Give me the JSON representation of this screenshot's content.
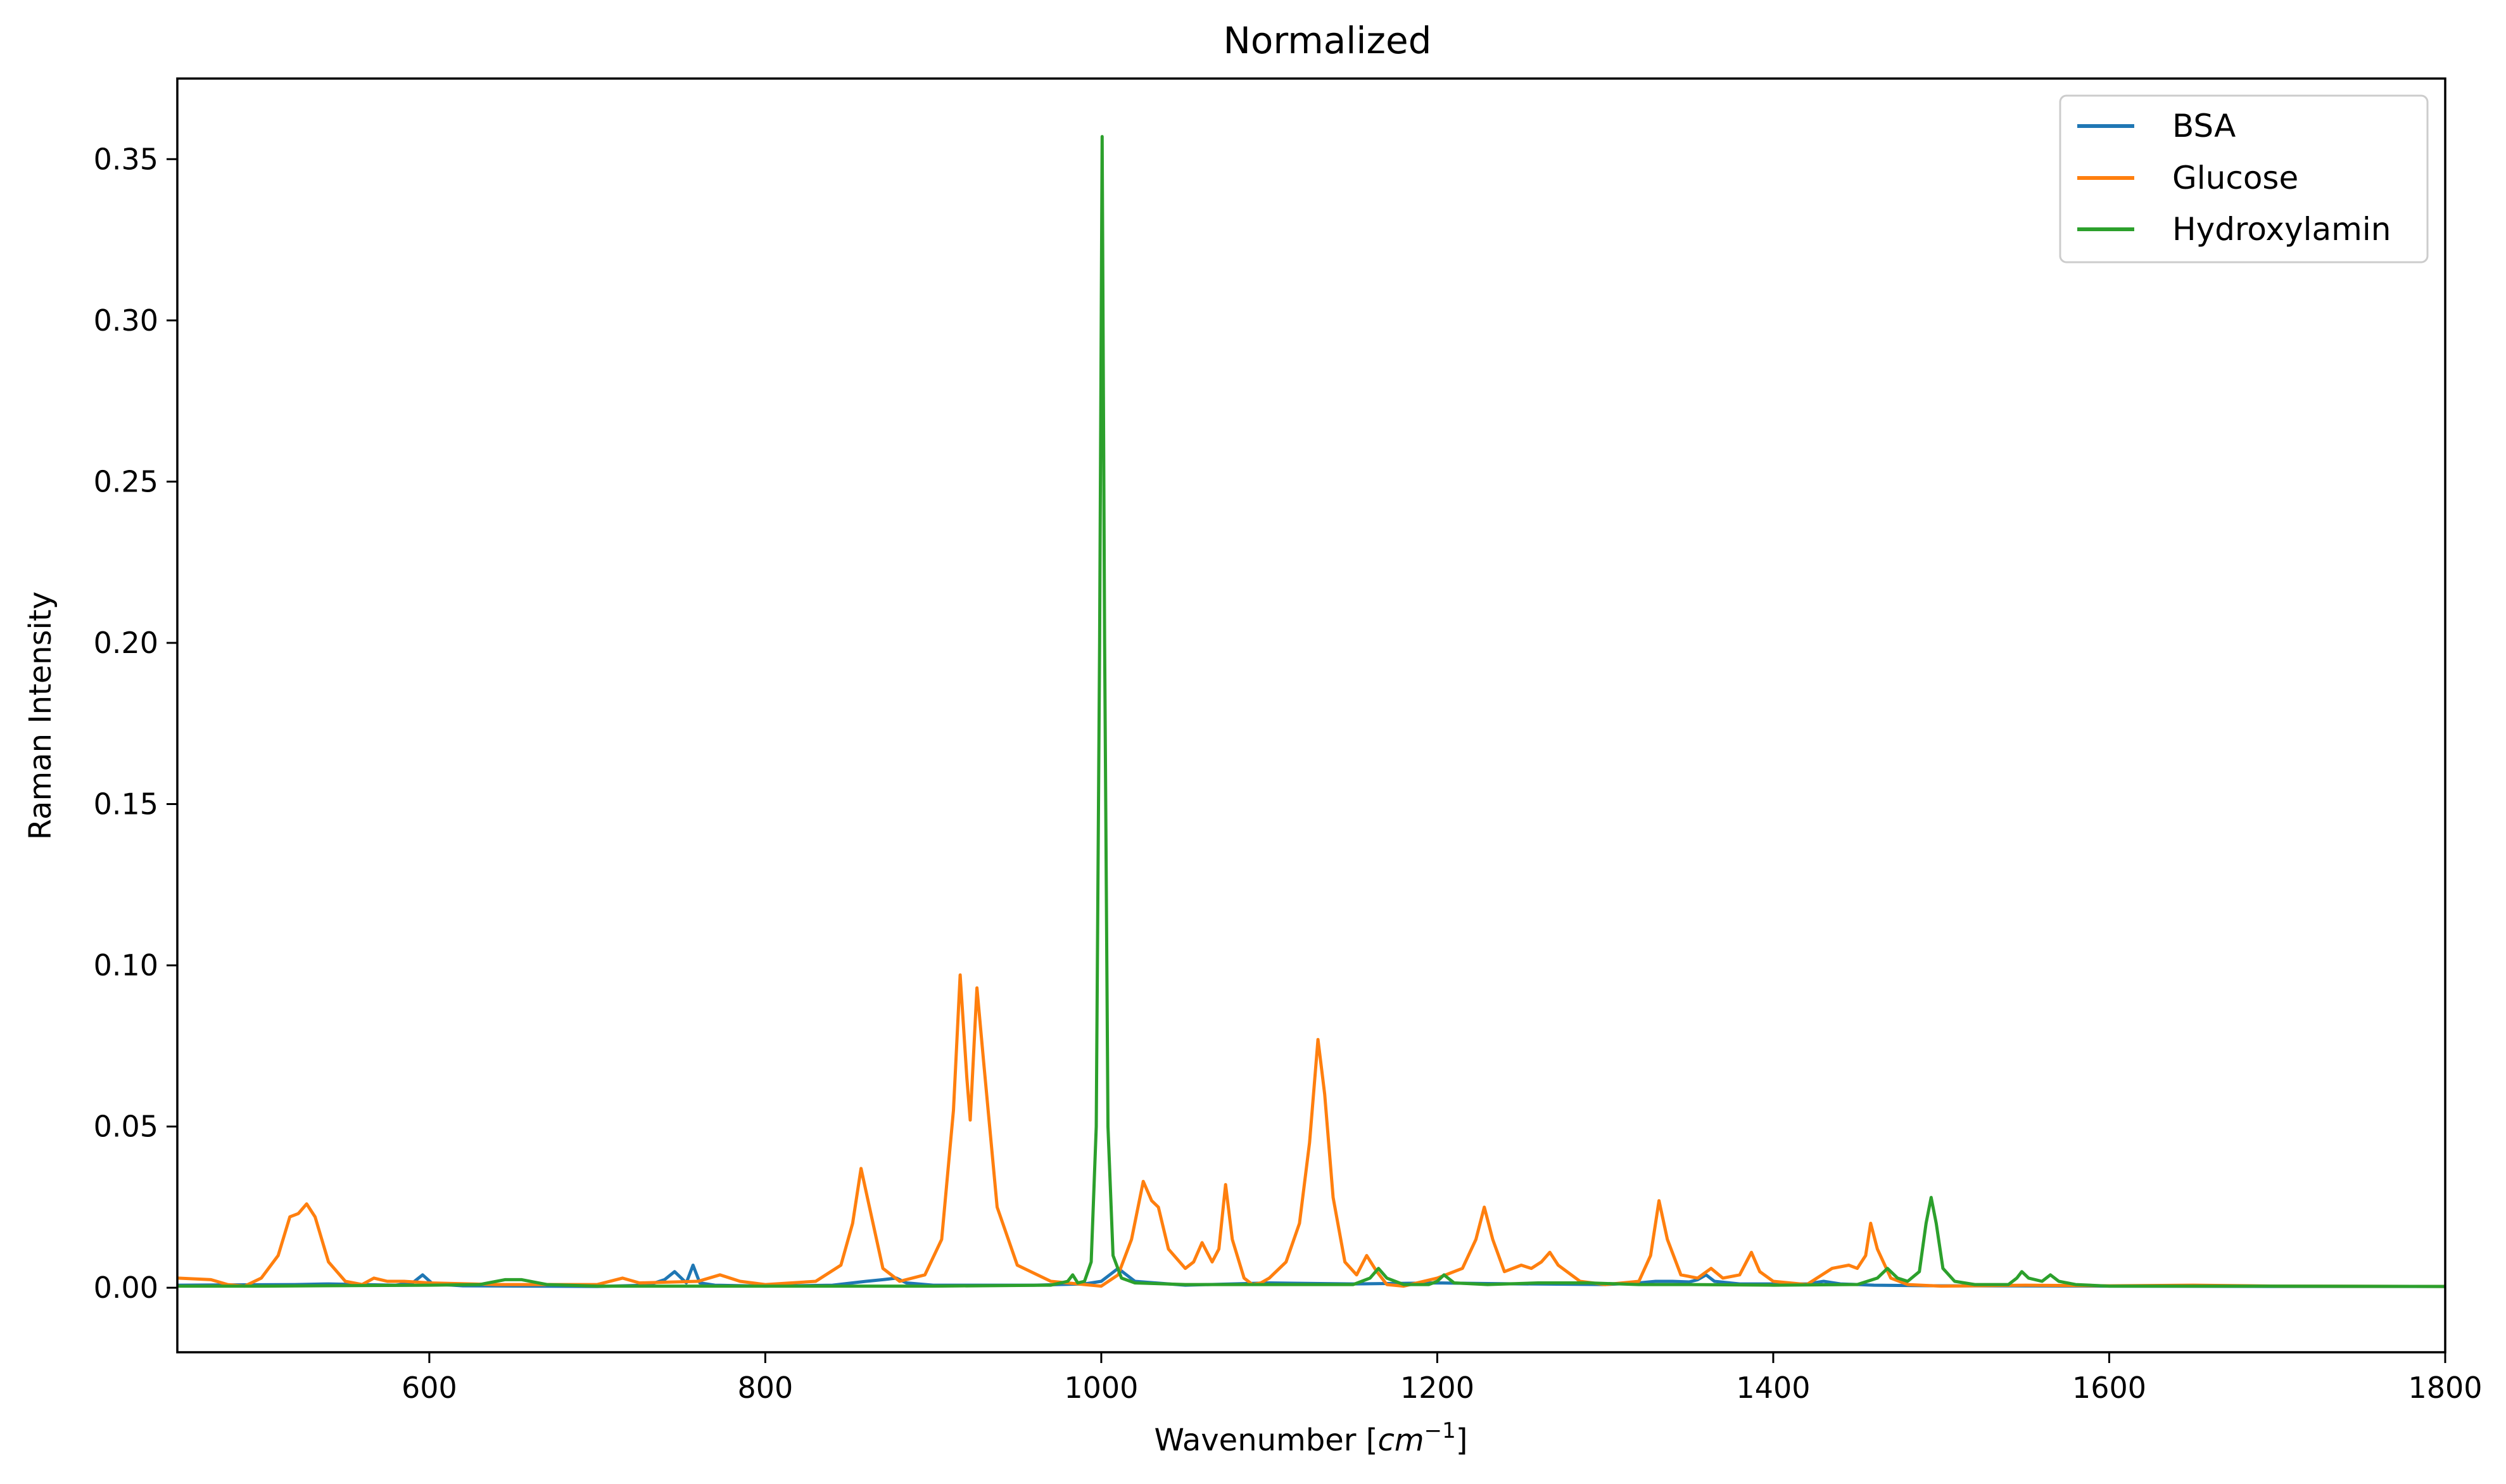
{
  "chart_data": {
    "type": "line",
    "title": "Normalized",
    "xlabel_main": "Wavenumber [",
    "xlabel_unit": "cm",
    "xlabel_sup": "−1",
    "xlabel_end": "]",
    "ylabel": "Raman Intensity",
    "xlim": [
      450,
      1800
    ],
    "ylim": [
      -0.02,
      0.375
    ],
    "xticks": [
      600,
      800,
      1000,
      1200,
      1400,
      1600,
      1800
    ],
    "xtick_labels": [
      "600",
      "800",
      "1000",
      "1200",
      "1400",
      "1600",
      "1800"
    ],
    "yticks": [
      0.0,
      0.05,
      0.1,
      0.15,
      0.2,
      0.25,
      0.3,
      0.35
    ],
    "ytick_labels": [
      "0.00",
      "0.05",
      "0.10",
      "0.15",
      "0.20",
      "0.25",
      "0.30",
      "0.35"
    ],
    "grid": false,
    "legend_position": "top-right",
    "series": [
      {
        "name": "BSA",
        "color": "#1f77b4",
        "x": [
          450,
          520,
          540,
          580,
          590,
          596,
          602,
          620,
          700,
          730,
          740,
          746,
          750,
          753,
          757,
          761,
          770,
          800,
          840,
          860,
          870,
          878,
          884,
          900,
          960,
          990,
          1000,
          1005,
          1010,
          1020,
          1050,
          1100,
          1150,
          1200,
          1250,
          1300,
          1320,
          1330,
          1340,
          1350,
          1355,
          1360,
          1365,
          1380,
          1420,
          1430,
          1440,
          1460,
          1500,
          1600,
          1700,
          1800
        ],
        "y": [
          0.0008,
          0.001,
          0.0012,
          0.0008,
          0.0015,
          0.004,
          0.0012,
          0.0006,
          0.0004,
          0.0008,
          0.0025,
          0.005,
          0.003,
          0.0015,
          0.007,
          0.0015,
          0.0008,
          0.0005,
          0.0008,
          0.002,
          0.0025,
          0.003,
          0.0015,
          0.0008,
          0.0008,
          0.0012,
          0.002,
          0.004,
          0.006,
          0.002,
          0.0008,
          0.0015,
          0.0012,
          0.0015,
          0.0012,
          0.001,
          0.0015,
          0.002,
          0.002,
          0.0018,
          0.0025,
          0.004,
          0.002,
          0.0012,
          0.0012,
          0.002,
          0.0012,
          0.0008,
          0.0006,
          0.0005,
          0.0004,
          0.0004
        ]
      },
      {
        "name": "Glucose",
        "color": "#ff7f0e",
        "x": [
          450,
          470,
          480,
          490,
          500,
          510,
          517,
          522,
          527,
          532,
          540,
          550,
          560,
          567,
          575,
          585,
          600,
          640,
          700,
          715,
          725,
          760,
          773,
          785,
          800,
          830,
          845,
          852,
          857,
          862,
          870,
          880,
          895,
          905,
          912,
          916,
          920,
          922,
          926,
          930,
          938,
          950,
          970,
          990,
          1000,
          1010,
          1018,
          1025,
          1030,
          1034,
          1040,
          1050,
          1055,
          1060,
          1066,
          1070,
          1074,
          1078,
          1085,
          1090,
          1095,
          1100,
          1110,
          1118,
          1124,
          1129,
          1133,
          1138,
          1145,
          1152,
          1158,
          1164,
          1170,
          1180,
          1200,
          1215,
          1223,
          1228,
          1233,
          1240,
          1250,
          1256,
          1262,
          1267,
          1272,
          1285,
          1300,
          1320,
          1327,
          1332,
          1337,
          1345,
          1355,
          1363,
          1370,
          1380,
          1387,
          1392,
          1400,
          1420,
          1435,
          1445,
          1450,
          1455,
          1458,
          1462,
          1470,
          1480,
          1500,
          1550,
          1600,
          1650,
          1700,
          1800
        ],
        "y": [
          0.003,
          0.0025,
          0.001,
          0.0005,
          0.003,
          0.01,
          0.022,
          0.023,
          0.026,
          0.022,
          0.008,
          0.002,
          0.001,
          0.003,
          0.002,
          0.002,
          0.0015,
          0.001,
          0.001,
          0.003,
          0.0015,
          0.002,
          0.004,
          0.002,
          0.001,
          0.002,
          0.007,
          0.02,
          0.037,
          0.025,
          0.006,
          0.002,
          0.004,
          0.015,
          0.055,
          0.097,
          0.065,
          0.052,
          0.093,
          0.07,
          0.025,
          0.007,
          0.002,
          0.001,
          0.0005,
          0.004,
          0.015,
          0.033,
          0.027,
          0.025,
          0.012,
          0.006,
          0.008,
          0.014,
          0.008,
          0.012,
          0.032,
          0.015,
          0.003,
          0.001,
          0.0015,
          0.003,
          0.008,
          0.02,
          0.045,
          0.077,
          0.06,
          0.028,
          0.008,
          0.004,
          0.01,
          0.005,
          0.001,
          0.0005,
          0.003,
          0.006,
          0.015,
          0.025,
          0.015,
          0.005,
          0.007,
          0.006,
          0.008,
          0.011,
          0.007,
          0.002,
          0.001,
          0.002,
          0.01,
          0.027,
          0.015,
          0.004,
          0.003,
          0.006,
          0.003,
          0.004,
          0.011,
          0.005,
          0.002,
          0.001,
          0.006,
          0.007,
          0.006,
          0.01,
          0.02,
          0.012,
          0.003,
          0.001,
          0.0005,
          0.0008,
          0.0006,
          0.0008,
          0.0005,
          0.0004
        ]
      },
      {
        "name": "Hydroxylamin",
        "color": "#2ca02c",
        "x": [
          450,
          500,
          600,
          630,
          645,
          655,
          670,
          700,
          800,
          900,
          970,
          980,
          983,
          986,
          990,
          994,
          997,
          999,
          1000.5,
          1002,
          1004,
          1007,
          1012,
          1020,
          1050,
          1100,
          1150,
          1160,
          1165,
          1170,
          1180,
          1195,
          1200,
          1204,
          1210,
          1230,
          1260,
          1290,
          1320,
          1350,
          1400,
          1450,
          1462,
          1468,
          1474,
          1480,
          1487,
          1491,
          1494,
          1497,
          1501,
          1508,
          1520,
          1540,
          1545,
          1548,
          1552,
          1560,
          1565,
          1570,
          1580,
          1600,
          1700,
          1800
        ],
        "y": [
          0.0005,
          0.0005,
          0.0008,
          0.001,
          0.0025,
          0.0025,
          0.001,
          0.0005,
          0.0005,
          0.0005,
          0.0008,
          0.002,
          0.004,
          0.0015,
          0.002,
          0.008,
          0.05,
          0.2,
          0.357,
          0.2,
          0.05,
          0.01,
          0.003,
          0.0015,
          0.001,
          0.001,
          0.001,
          0.003,
          0.006,
          0.003,
          0.001,
          0.001,
          0.002,
          0.004,
          0.0015,
          0.001,
          0.0015,
          0.0015,
          0.001,
          0.001,
          0.0008,
          0.001,
          0.003,
          0.006,
          0.003,
          0.002,
          0.005,
          0.02,
          0.028,
          0.02,
          0.006,
          0.002,
          0.001,
          0.001,
          0.003,
          0.005,
          0.003,
          0.002,
          0.004,
          0.002,
          0.001,
          0.0005,
          0.0005,
          0.0004
        ]
      }
    ]
  }
}
